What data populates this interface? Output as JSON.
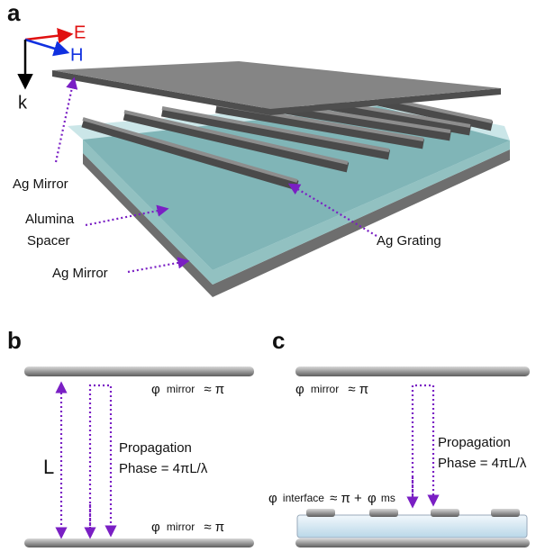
{
  "panel_a": {
    "label": "a",
    "axes": {
      "e": "E",
      "h": "H",
      "k": "k"
    },
    "labels": {
      "top_mirror": "Ag Mirror",
      "spacer": [
        "Alumina",
        "Spacer"
      ],
      "grating": "Ag Grating",
      "bottom_mirror": "Ag Mirror"
    }
  },
  "panel_b": {
    "label": "b",
    "top_phase": {
      "symbol": "φ",
      "subscript": "mirror",
      "relation": "≈ π"
    },
    "length": "L",
    "propagation": [
      "Propagation",
      "Phase = 4πL/λ"
    ],
    "bottom_phase": {
      "symbol": "φ",
      "subscript": "mirror",
      "relation": "≈ π"
    }
  },
  "panel_c": {
    "label": "c",
    "top_phase": {
      "symbol": "φ",
      "subscript": "mirror",
      "relation": "≈ π"
    },
    "propagation": [
      "Propagation",
      "Phase = 4πL/λ"
    ],
    "interface_phase": {
      "symbol": "φ",
      "subscript": "interface",
      "relation": "≈ π +",
      "symbol2": "φ",
      "subscript2": "ms"
    }
  }
}
